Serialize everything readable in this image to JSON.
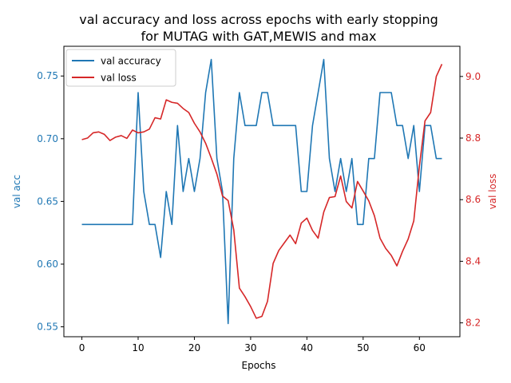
{
  "chart_data": {
    "type": "line",
    "title_line1": "val accuracy and loss across epochs with early stopping",
    "title_line2": "for MUTAG with GAT,MEWIS and max",
    "xlabel": "Epochs",
    "ylabel_left": "val acc",
    "ylabel_right": "val loss",
    "xlim": [
      -3.2,
      67.2
    ],
    "ylim_left": [
      0.5421,
      0.7737
    ],
    "ylim_right": [
      8.155,
      9.098
    ],
    "xticks": [
      0,
      10,
      20,
      30,
      40,
      50,
      60
    ],
    "xtick_labels": [
      "0",
      "10",
      "20",
      "30",
      "40",
      "50",
      "60"
    ],
    "yticks_left": [
      0.55,
      0.6,
      0.65,
      0.7,
      0.75
    ],
    "ytick_labels_left": [
      "0.55",
      "0.60",
      "0.65",
      "0.70",
      "0.75"
    ],
    "yticks_right": [
      8.2,
      8.4,
      8.6,
      8.8,
      9.0
    ],
    "ytick_labels_right": [
      "8.2",
      "8.4",
      "8.6",
      "8.8",
      "9.0"
    ],
    "legend_position": "upper left",
    "x": [
      0,
      1,
      2,
      3,
      4,
      5,
      6,
      7,
      8,
      9,
      10,
      11,
      12,
      13,
      14,
      15,
      16,
      17,
      18,
      19,
      20,
      21,
      22,
      23,
      24,
      25,
      26,
      27,
      28,
      29,
      30,
      31,
      32,
      33,
      34,
      35,
      36,
      37,
      38,
      39,
      40,
      41,
      42,
      43,
      44,
      45,
      46,
      47,
      48,
      49,
      50,
      51,
      52,
      53,
      54,
      55,
      56,
      57,
      58,
      59,
      60,
      61,
      62,
      63,
      64
    ],
    "series": [
      {
        "name": "val accuracy",
        "axis": "left",
        "color": "#1f77b4",
        "values": [
          0.6316,
          0.6316,
          0.6316,
          0.6316,
          0.6316,
          0.6316,
          0.6316,
          0.6316,
          0.6316,
          0.6316,
          0.7368,
          0.6579,
          0.6316,
          0.6316,
          0.6053,
          0.6579,
          0.6316,
          0.7105,
          0.6579,
          0.6842,
          0.6579,
          0.6842,
          0.7368,
          0.7632,
          0.6842,
          0.6579,
          0.5526,
          0.6842,
          0.7368,
          0.7105,
          0.7105,
          0.7105,
          0.7368,
          0.7368,
          0.7105,
          0.7105,
          0.7105,
          0.7105,
          0.7105,
          0.6579,
          0.6579,
          0.7105,
          0.7368,
          0.7632,
          0.6842,
          0.6579,
          0.6842,
          0.6579,
          0.6842,
          0.6316,
          0.6316,
          0.6842,
          0.6842,
          0.7368,
          0.7368,
          0.7368,
          0.7105,
          0.7105,
          0.6842,
          0.7105,
          0.6579,
          0.7105,
          0.7105,
          0.6842,
          0.6842
        ]
      },
      {
        "name": "val loss",
        "axis": "right",
        "color": "#d62728",
        "values": [
          8.795,
          8.8,
          8.817,
          8.82,
          8.812,
          8.792,
          8.803,
          8.808,
          8.799,
          8.826,
          8.817,
          8.82,
          8.829,
          8.866,
          8.862,
          8.924,
          8.916,
          8.913,
          8.896,
          8.883,
          8.848,
          8.82,
          8.783,
          8.735,
          8.683,
          8.612,
          8.597,
          8.502,
          8.313,
          8.285,
          8.253,
          8.215,
          8.221,
          8.27,
          8.393,
          8.435,
          8.46,
          8.485,
          8.457,
          8.524,
          8.54,
          8.5,
          8.475,
          8.56,
          8.607,
          8.61,
          8.677,
          8.594,
          8.573,
          8.659,
          8.628,
          8.596,
          8.548,
          8.475,
          8.442,
          8.419,
          8.385,
          8.432,
          8.472,
          8.531,
          8.709,
          8.856,
          8.883,
          9.0,
          9.04
        ]
      }
    ]
  }
}
